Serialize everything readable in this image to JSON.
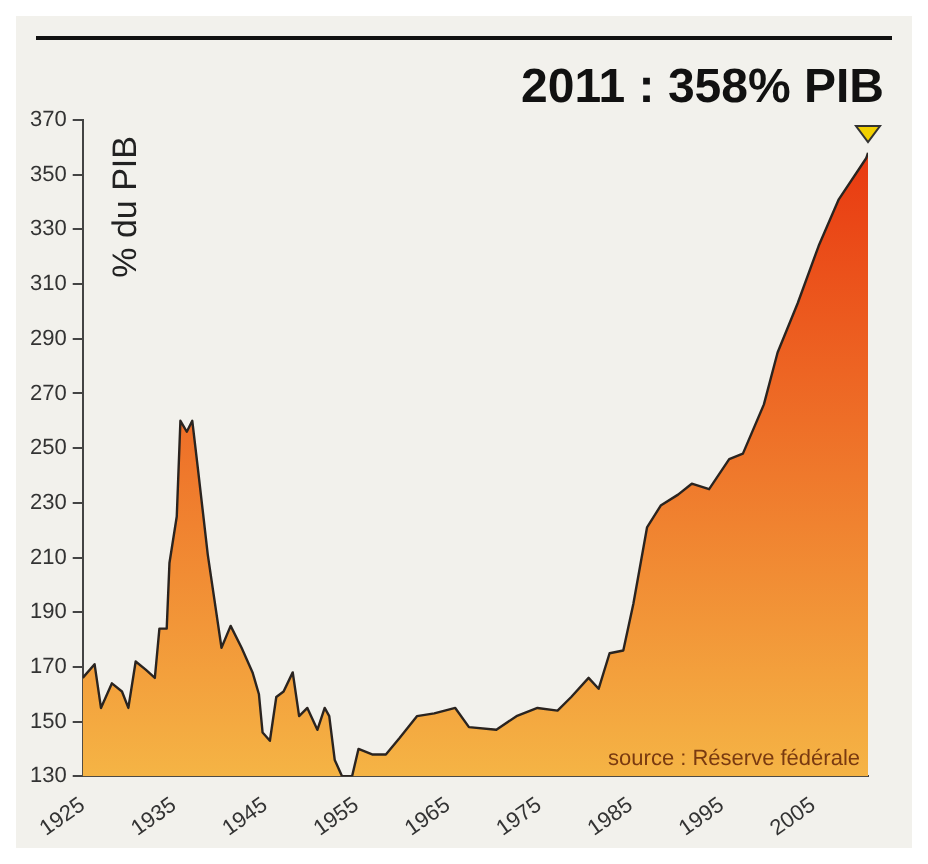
{
  "chart_data": {
    "type": "area",
    "ylabel": "% du PIB",
    "xlim": [
      1925,
      2011
    ],
    "xticks": [
      1925,
      1935,
      1945,
      1955,
      1965,
      1975,
      1985,
      1995,
      2005
    ],
    "ylim": [
      130,
      370
    ],
    "yticks": [
      130,
      150,
      170,
      190,
      210,
      230,
      250,
      270,
      290,
      310,
      330,
      350,
      370
    ],
    "grid": false,
    "legend": false,
    "marker": "none",
    "annotations": [
      {
        "text": "2011 : 358% PIB",
        "x": 2011,
        "y": 358
      },
      "source : Réserve fédérale"
    ],
    "series": [
      {
        "color": "#e8330e",
        "x": [
          1925,
          1926.3,
          1927,
          1928.2,
          1929.3,
          1930,
          1930.8,
          1931.9,
          1932.9,
          1933.4,
          1934.2,
          1934.5,
          1935.3,
          1935.7,
          1936.4,
          1937,
          1937.6,
          1938.7,
          1940.2,
          1941.2,
          1942.4,
          1943.6,
          1944.3,
          1944.7,
          1945.5,
          1946.2,
          1947,
          1948,
          1948.7,
          1949.6,
          1950.7,
          1951.5,
          1952,
          1952.6,
          1953.4,
          1954.5,
          1955.2,
          1956.7,
          1958.2,
          1959.7,
          1961.6,
          1963.5,
          1965.8,
          1967.3,
          1970.3,
          1972.5,
          1974.8,
          1977,
          1978.5,
          1980.4,
          1981.5,
          1982.7,
          1984.2,
          1985.3,
          1986.8,
          1988.3,
          1990.2,
          1991.7,
          1993.6,
          1995.8,
          1997.3,
          1999.6,
          2001.1,
          2003.3,
          2005.6,
          2007.8,
          2010.8,
          2011
        ],
        "values": [
          166,
          171,
          155,
          164,
          161,
          155,
          172,
          169,
          166,
          184,
          184,
          208,
          225,
          260,
          256,
          260,
          243,
          211,
          177,
          185,
          177,
          168,
          160,
          146,
          143,
          159,
          161,
          168,
          152,
          155,
          147,
          155,
          152,
          136,
          130,
          130,
          140,
          138,
          138,
          144,
          152,
          153,
          155,
          148,
          147,
          152,
          155,
          154,
          159,
          166,
          162,
          175,
          176,
          193,
          221,
          229,
          233,
          237,
          235,
          246,
          248,
          266,
          285,
          303,
          324,
          341,
          356,
          358
        ]
      }
    ]
  }
}
